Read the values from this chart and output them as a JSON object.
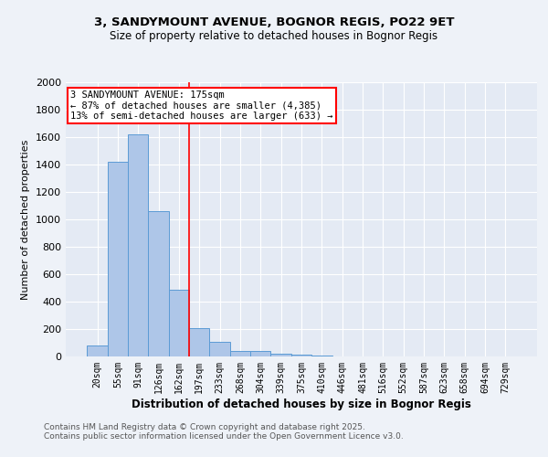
{
  "title1": "3, SANDYMOUNT AVENUE, BOGNOR REGIS, PO22 9ET",
  "title2": "Size of property relative to detached houses in Bognor Regis",
  "xlabel": "Distribution of detached houses by size in Bognor Regis",
  "ylabel": "Number of detached properties",
  "bar_labels": [
    "20sqm",
    "55sqm",
    "91sqm",
    "126sqm",
    "162sqm",
    "197sqm",
    "233sqm",
    "268sqm",
    "304sqm",
    "339sqm",
    "375sqm",
    "410sqm",
    "446sqm",
    "481sqm",
    "516sqm",
    "552sqm",
    "587sqm",
    "623sqm",
    "658sqm",
    "694sqm",
    "729sqm"
  ],
  "bar_values": [
    80,
    1420,
    1620,
    1060,
    490,
    205,
    105,
    40,
    40,
    20,
    15,
    10,
    0,
    0,
    0,
    0,
    0,
    0,
    0,
    0,
    0
  ],
  "bar_color": "#aec6e8",
  "bar_edge_color": "#5b9bd5",
  "red_line_x": 4.5,
  "annotation_line1": "3 SANDYMOUNT AVENUE: 175sqm",
  "annotation_line2": "← 87% of detached houses are smaller (4,385)",
  "annotation_line3": "13% of semi-detached houses are larger (633) →",
  "ylim": [
    0,
    2000
  ],
  "yticks": [
    0,
    200,
    400,
    600,
    800,
    1000,
    1200,
    1400,
    1600,
    1800,
    2000
  ],
  "footnote1": "Contains HM Land Registry data © Crown copyright and database right 2025.",
  "footnote2": "Contains public sector information licensed under the Open Government Licence v3.0.",
  "bg_color": "#eef2f8",
  "plot_bg_color": "#e4eaf4"
}
